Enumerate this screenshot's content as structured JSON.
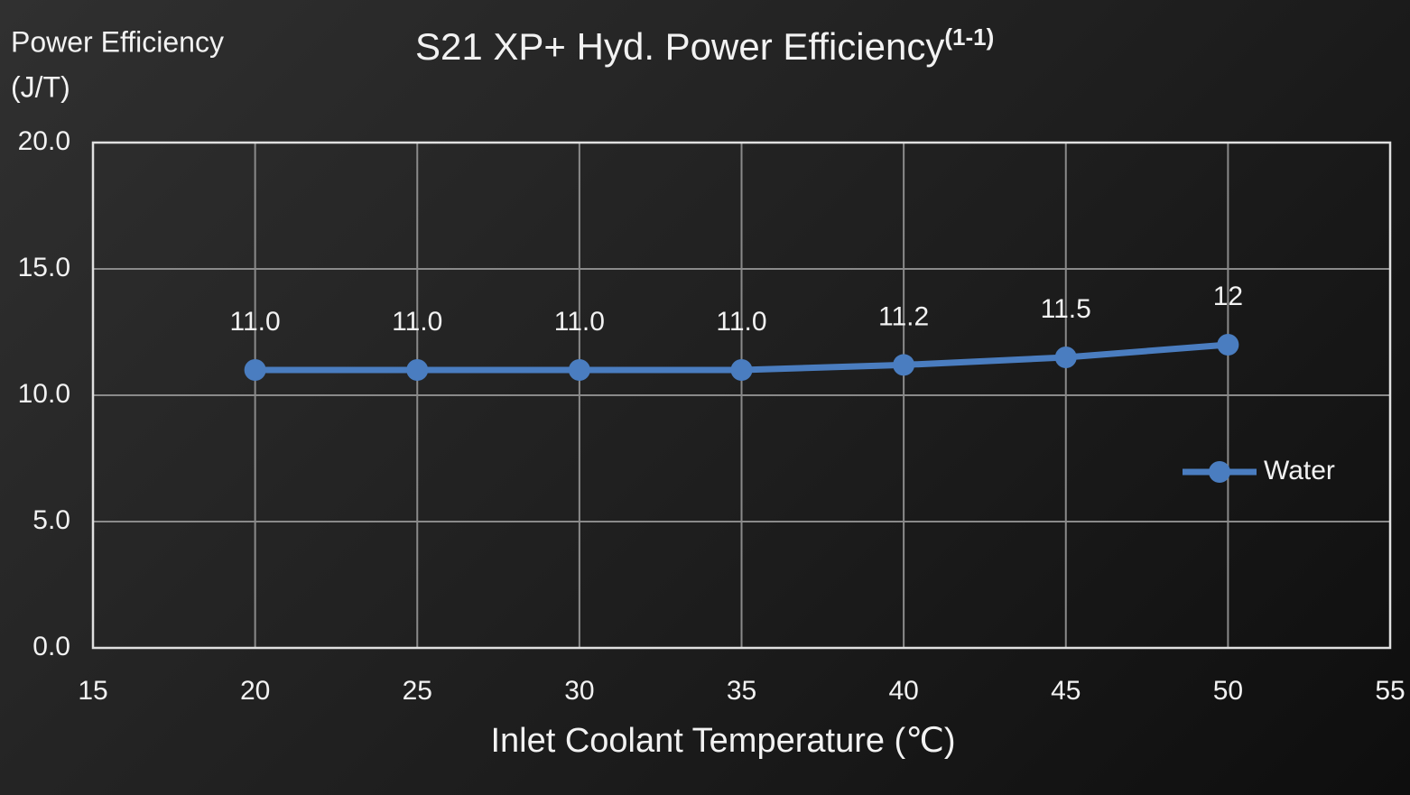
{
  "chart_data": {
    "type": "line",
    "title": "S21 XP+ Hyd. Power Efficiency",
    "title_superscript": "(1-1)",
    "ylabel": [
      "Power Efficiency",
      "(J/T)"
    ],
    "xlabel": "Inlet Coolant Temperature (℃)",
    "x": [
      20,
      25,
      30,
      35,
      40,
      45,
      50
    ],
    "series": [
      {
        "name": "Water",
        "color": "#4a7dc0",
        "values": [
          11.0,
          11.0,
          11.0,
          11.0,
          11.2,
          11.5,
          12
        ],
        "value_labels": [
          "11.0",
          "11.0",
          "11.0",
          "11.0",
          "11.2",
          "11.5",
          "12"
        ]
      }
    ],
    "xlim": [
      15,
      55
    ],
    "xticks": [
      15,
      20,
      25,
      30,
      35,
      40,
      45,
      50,
      55
    ],
    "ylim": [
      0,
      20
    ],
    "yticks": [
      {
        "value": 0,
        "label": "0.0"
      },
      {
        "value": 5,
        "label": "5.0"
      },
      {
        "value": 10,
        "label": "10.0"
      },
      {
        "value": 15,
        "label": "15.0"
      },
      {
        "value": 20,
        "label": "20.0"
      }
    ],
    "grid": true,
    "legend": "right"
  }
}
